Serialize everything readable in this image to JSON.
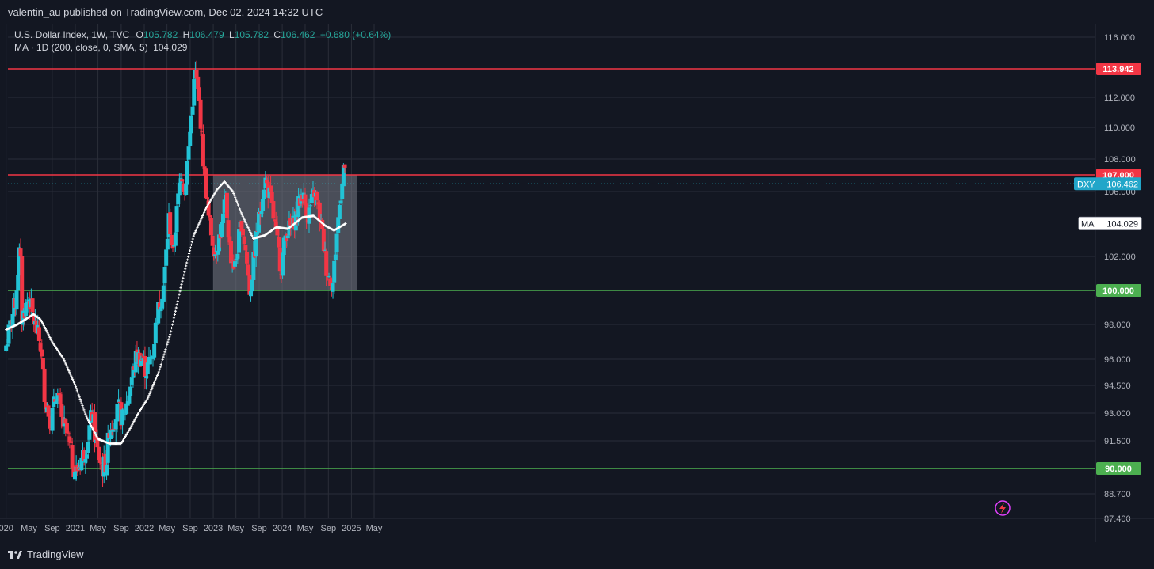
{
  "publisher_line": "valentin_au published on TradingView.com, Dec 02, 2024 14:32 UTC",
  "legend": {
    "symbol_line": "U.S. Dollar Index, 1W, TVC",
    "o_label": "O",
    "o_value": "105.782",
    "h_label": "H",
    "h_value": "106.479",
    "l_label": "L",
    "l_value": "105.782",
    "c_label": "C",
    "c_value": "106.462",
    "change": "+0.680 (+0.64%)",
    "ma_line": "MA · 1D (200, close, 0, SMA, 5)",
    "ma_value": "104.029"
  },
  "brand": "TradingView",
  "colors": {
    "background": "#131722",
    "grid": "#2a2e39",
    "up": "#26a69a",
    "up_bright": "#22c3d6",
    "down": "#f23645",
    "resistance": "#f23645",
    "support": "#4caf50",
    "range_box": "rgba(120,123,134,0.55)",
    "ma": "#ffffff"
  },
  "chart_data": {
    "type": "candlestick",
    "title": "",
    "symbol": "DXY",
    "timeframe": "1W",
    "y_ticks": [
      "116.000",
      "112.000",
      "110.000",
      "108.000",
      "106.000",
      "102.000",
      "98.000",
      "96.000",
      "94.500",
      "93.000",
      "91.500",
      "88.700",
      "87.400"
    ],
    "y_tick_values": [
      116,
      112,
      110,
      108,
      106,
      102,
      98,
      96,
      94.5,
      93,
      91.5,
      88.7,
      87.4
    ],
    "x_ticks": [
      "020",
      "May",
      "Sep",
      "2021",
      "May",
      "Sep",
      "2022",
      "May",
      "Sep",
      "2023",
      "May",
      "Sep",
      "2024",
      "May",
      "Sep",
      "2025",
      "May"
    ],
    "x_tick_dates": [
      "2020-01-01",
      "2020-05-01",
      "2020-09-01",
      "2021-01-01",
      "2021-05-01",
      "2021-09-01",
      "2022-01-01",
      "2022-05-01",
      "2022-09-01",
      "2023-01-01",
      "2023-05-01",
      "2023-09-01",
      "2024-01-01",
      "2024-05-01",
      "2024-09-01",
      "2025-01-01",
      "2025-05-01"
    ],
    "horizontal_levels": [
      {
        "label": "113.942",
        "value": 113.942,
        "color": "#f23645"
      },
      {
        "label": "107.000",
        "value": 107.0,
        "color": "#f23645"
      },
      {
        "label": "100.000",
        "value": 100.0,
        "color": "#4caf50"
      },
      {
        "label": "90.000",
        "value": 90.0,
        "color": "#4caf50"
      }
    ],
    "price_tag": {
      "name": "DXY",
      "label": "106.462",
      "value": 106.462
    },
    "ma_tag": {
      "name": "MA",
      "label": "104.029",
      "value": 104.029
    },
    "range_box": {
      "x_start": "2023-01-01",
      "x_end": "2025-02-01",
      "y_low": 100.0,
      "y_high": 107.0
    },
    "candle_close_path": [
      {
        "date": "2020-01-01",
        "close": 96.8
      },
      {
        "date": "2020-02-20",
        "close": 99.4
      },
      {
        "date": "2020-03-15",
        "close": 102.8
      },
      {
        "date": "2020-03-25",
        "close": 98.4
      },
      {
        "date": "2020-05-01",
        "close": 99.6
      },
      {
        "date": "2020-05-25",
        "close": 98.3
      },
      {
        "date": "2020-07-01",
        "close": 96.8
      },
      {
        "date": "2020-07-25",
        "close": 93.8
      },
      {
        "date": "2020-08-25",
        "close": 92.5
      },
      {
        "date": "2020-09-25",
        "close": 94.3
      },
      {
        "date": "2020-10-20",
        "close": 92.6
      },
      {
        "date": "2020-11-20",
        "close": 91.8
      },
      {
        "date": "2020-12-20",
        "close": 90.2
      },
      {
        "date": "2021-01-06",
        "close": 89.8
      },
      {
        "date": "2021-02-01",
        "close": 90.5
      },
      {
        "date": "2021-03-01",
        "close": 91.2
      },
      {
        "date": "2021-03-30",
        "close": 93.0
      },
      {
        "date": "2021-04-25",
        "close": 91.0
      },
      {
        "date": "2021-05-25",
        "close": 90.0
      },
      {
        "date": "2021-06-15",
        "close": 90.4
      },
      {
        "date": "2021-06-30",
        "close": 92.2
      },
      {
        "date": "2021-08-20",
        "close": 93.2
      },
      {
        "date": "2021-09-10",
        "close": 92.6
      },
      {
        "date": "2021-10-10",
        "close": 94.0
      },
      {
        "date": "2021-11-20",
        "close": 96.2
      },
      {
        "date": "2021-12-20",
        "close": 96.0
      },
      {
        "date": "2022-01-10",
        "close": 95.3
      },
      {
        "date": "2022-02-15",
        "close": 96.4
      },
      {
        "date": "2022-03-10",
        "close": 98.6
      },
      {
        "date": "2022-04-15",
        "close": 100.4
      },
      {
        "date": "2022-05-12",
        "close": 104.5
      },
      {
        "date": "2022-06-01",
        "close": 102.0
      },
      {
        "date": "2022-06-20",
        "close": 104.5
      },
      {
        "date": "2022-07-15",
        "close": 107.5
      },
      {
        "date": "2022-08-02",
        "close": 105.8
      },
      {
        "date": "2022-08-25",
        "close": 108.8
      },
      {
        "date": "2022-09-27",
        "close": 113.8
      },
      {
        "date": "2022-10-20",
        "close": 111.5
      },
      {
        "date": "2022-11-10",
        "close": 107.8
      },
      {
        "date": "2022-12-05",
        "close": 104.5
      },
      {
        "date": "2023-01-10",
        "close": 102.2
      },
      {
        "date": "2023-02-15",
        "close": 103.8
      },
      {
        "date": "2023-03-08",
        "close": 105.5
      },
      {
        "date": "2023-04-01",
        "close": 102.2
      },
      {
        "date": "2023-04-25",
        "close": 101.3
      },
      {
        "date": "2023-05-30",
        "close": 104.2
      },
      {
        "date": "2023-06-20",
        "close": 102.5
      },
      {
        "date": "2023-07-14",
        "close": 99.8
      },
      {
        "date": "2023-08-20",
        "close": 103.5
      },
      {
        "date": "2023-10-01",
        "close": 106.8
      },
      {
        "date": "2023-11-01",
        "close": 105.5
      },
      {
        "date": "2023-12-25",
        "close": 101.3
      },
      {
        "date": "2024-01-20",
        "close": 103.5
      },
      {
        "date": "2024-03-01",
        "close": 104.0
      },
      {
        "date": "2024-04-15",
        "close": 106.0
      },
      {
        "date": "2024-05-15",
        "close": 104.5
      },
      {
        "date": "2024-06-20",
        "close": 106.0
      },
      {
        "date": "2024-07-20",
        "close": 104.3
      },
      {
        "date": "2024-08-25",
        "close": 101.0
      },
      {
        "date": "2024-09-25",
        "close": 100.4
      },
      {
        "date": "2024-10-20",
        "close": 104.0
      },
      {
        "date": "2024-11-20",
        "close": 107.6
      },
      {
        "date": "2024-12-02",
        "close": 106.462
      }
    ],
    "ma_series": [
      {
        "date": "2020-01-01",
        "value": 97.7
      },
      {
        "date": "2020-03-01",
        "value": 98.0
      },
      {
        "date": "2020-05-25",
        "value": 98.6
      },
      {
        "date": "2020-07-01",
        "value": 98.3
      },
      {
        "date": "2020-09-01",
        "value": 97.0
      },
      {
        "date": "2020-11-01",
        "value": 96.0
      },
      {
        "date": "2021-01-01",
        "value": 94.5
      },
      {
        "date": "2021-03-01",
        "value": 92.8
      },
      {
        "date": "2021-05-01",
        "value": 91.6
      },
      {
        "date": "2021-07-01",
        "value": 91.35
      },
      {
        "date": "2021-09-01",
        "value": 91.35
      },
      {
        "date": "2021-10-20",
        "value": 92.2
      },
      {
        "date": "2021-12-01",
        "value": 93.0
      },
      {
        "date": "2022-01-20",
        "value": 93.8
      },
      {
        "date": "2022-03-20",
        "value": 95.3
      },
      {
        "date": "2022-05-20",
        "value": 97.5
      },
      {
        "date": "2022-07-20",
        "value": 100.5
      },
      {
        "date": "2022-09-20",
        "value": 103.3
      },
      {
        "date": "2022-11-25",
        "value": 105.0
      },
      {
        "date": "2023-01-20",
        "value": 106.1
      },
      {
        "date": "2023-03-01",
        "value": 106.6
      },
      {
        "date": "2023-04-15",
        "value": 106.0
      },
      {
        "date": "2023-06-01",
        "value": 104.6
      },
      {
        "date": "2023-08-01",
        "value": 103.1
      },
      {
        "date": "2023-10-01",
        "value": 103.3
      },
      {
        "date": "2023-12-01",
        "value": 103.8
      },
      {
        "date": "2024-02-01",
        "value": 103.7
      },
      {
        "date": "2024-04-15",
        "value": 104.4
      },
      {
        "date": "2024-06-15",
        "value": 104.5
      },
      {
        "date": "2024-08-15",
        "value": 103.9
      },
      {
        "date": "2024-10-01",
        "value": 103.6
      },
      {
        "date": "2024-12-02",
        "value": 104.029
      }
    ]
  }
}
